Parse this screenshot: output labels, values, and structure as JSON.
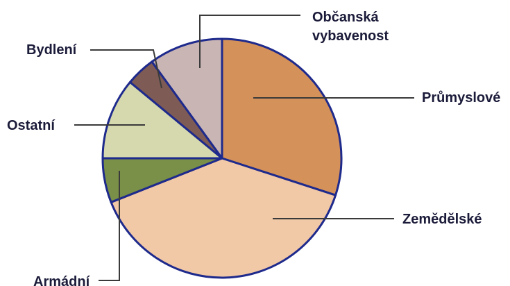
{
  "chart_data": {
    "type": "pie",
    "title": "",
    "start_angle_deg": 0,
    "direction": "clockwise",
    "slices": [
      {
        "label": "Průmyslové",
        "value": 30,
        "color": "#d4915a"
      },
      {
        "label": "Zemědělské",
        "value": 39,
        "color": "#f2c9a6"
      },
      {
        "label": "Armádní",
        "value": 6,
        "color": "#7a8f47"
      },
      {
        "label": "Ostatní",
        "value": 11,
        "color": "#d6d8ad"
      },
      {
        "label": "Bydlení",
        "value": 4,
        "color": "#7e5c55"
      },
      {
        "label": "Občanská vybavenost",
        "value": 10,
        "color": "#c9b5b4"
      }
    ],
    "label_lines": {
      "Občanská vybavenost": [
        "Občanská",
        "vybavenost"
      ]
    }
  }
}
